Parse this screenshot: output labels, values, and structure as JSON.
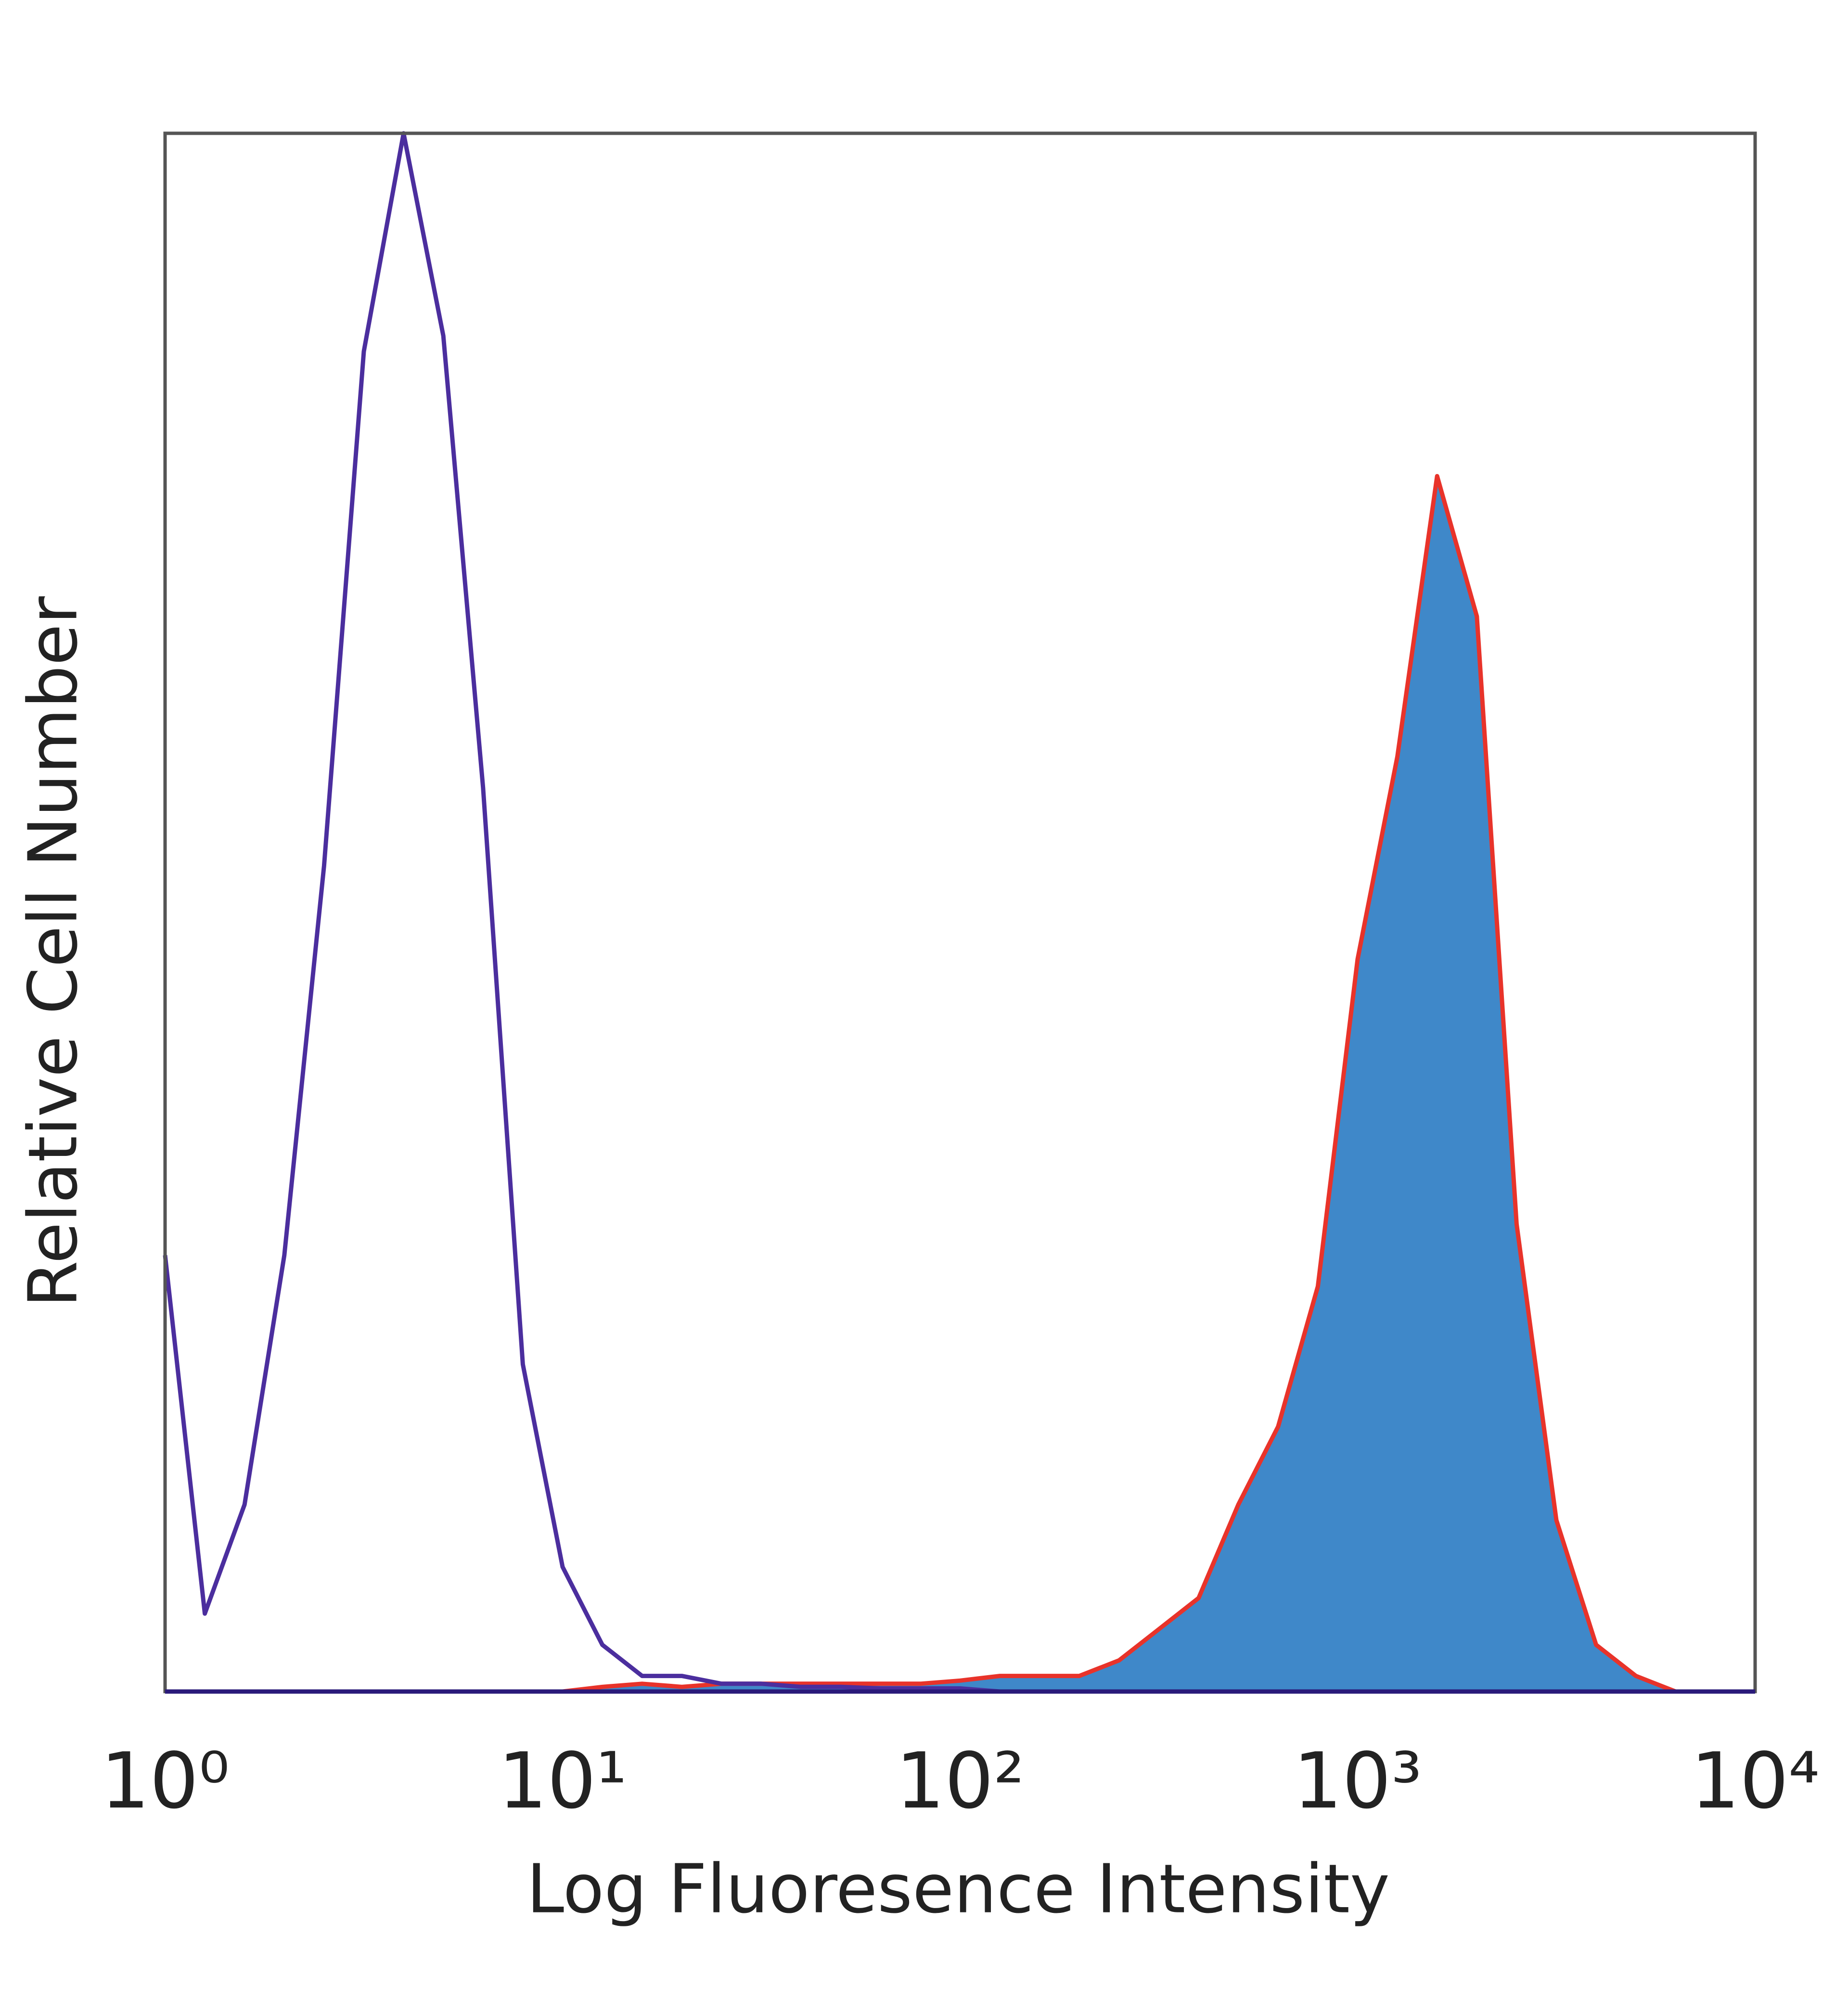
{
  "chart_data": {
    "type": "histogram-overlay",
    "x_label": "Log Fluoresence Intensity",
    "y_label": "Relative Cell Number",
    "x": [
      1,
      1.259,
      1.585,
      1.995,
      2.512,
      3.162,
      3.981,
      5.012,
      6.31,
      7.943,
      10,
      12.59,
      15.85,
      19.95,
      25.12,
      31.62,
      39.81,
      50.12,
      63.1,
      79.43,
      100,
      125.9,
      158.5,
      199.5,
      251.2,
      316.2,
      398.1,
      501.2,
      631,
      794.3,
      1000,
      1259,
      1585,
      1995,
      2512,
      3162,
      3981,
      5012,
      6310,
      7943,
      10000
    ],
    "series": [
      {
        "color": "#4b2e9e",
        "fill": false,
        "values": [
          28,
          5,
          12,
          28,
          53,
          86,
          100,
          87,
          58,
          21,
          8,
          3,
          1,
          1,
          0.5,
          0.5,
          0.3,
          0.3,
          0.2,
          0.2,
          0.2,
          0,
          0,
          0,
          0,
          0,
          0,
          0,
          0,
          0,
          0,
          0,
          0,
          0,
          0,
          0,
          0,
          0,
          0,
          0,
          0
        ]
      },
      {
        "color": "#e8332a",
        "fill": true,
        "fill_color": "#3f88c9",
        "values": [
          0,
          0,
          0,
          0,
          0,
          0,
          0,
          0,
          0,
          0,
          0,
          0.3,
          0.5,
          0.3,
          0.5,
          0.5,
          0.5,
          0.5,
          0.5,
          0.5,
          0.7,
          1,
          1,
          1,
          2,
          4,
          6,
          12,
          17,
          26,
          47,
          60,
          78,
          69,
          30,
          11,
          3,
          1,
          0,
          0,
          0
        ]
      }
    ],
    "xlim": [
      1,
      10000
    ],
    "xlog": true,
    "xticks": [
      {
        "value": 1,
        "label": "10⁰"
      },
      {
        "value": 10,
        "label": "10¹"
      },
      {
        "value": 100,
        "label": "10²"
      },
      {
        "value": 1000,
        "label": "10³"
      },
      {
        "value": 10000,
        "label": "10⁴"
      }
    ],
    "ylim": [
      0,
      100
    ]
  }
}
